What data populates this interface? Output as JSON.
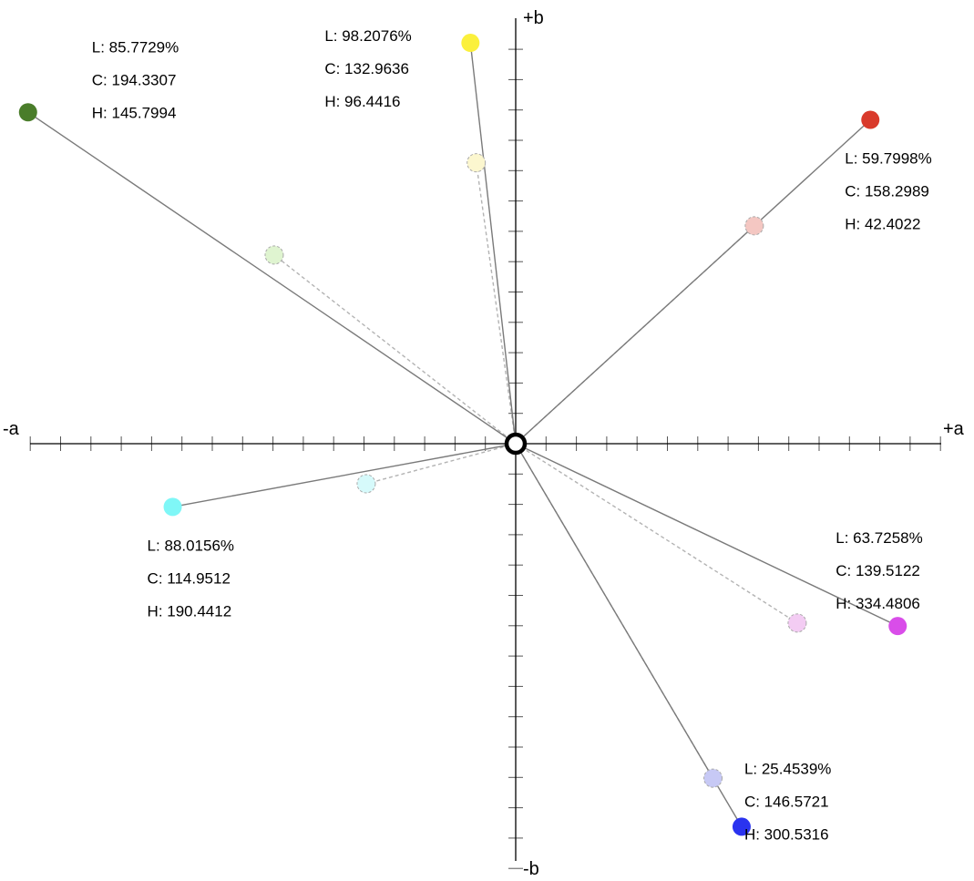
{
  "axes": {
    "pos_a": "+a",
    "neg_a": "-a",
    "pos_b": "+b",
    "neg_b": "-b"
  },
  "chart_data": {
    "type": "scatter",
    "coordinate_space": "CIELCh (a/b plane)",
    "xlim": [
      -160,
      140
    ],
    "ylim": [
      -140,
      133
    ],
    "tick_step": 10,
    "grid": false,
    "origin_marker": true,
    "points": [
      {
        "color": "#d93a2b",
        "faded_color": "#f4c7c2",
        "L": "L: 59.7998%",
        "C": "C: 158.2989",
        "H": "H: 42.4022",
        "chroma": 158.2989,
        "hue": 42.4022,
        "faded_chroma": 106.5,
        "faded_hue": 42.4022,
        "label_side": "below"
      },
      {
        "color": "#fbf03c",
        "faded_color": "#fcf7cf",
        "L": "L: 98.2076%",
        "C": "C: 132.9636",
        "H": "H: 96.4416",
        "chroma": 132.9636,
        "hue": 96.4416,
        "faded_chroma": 93.5,
        "faded_hue": 98.0,
        "label_side": "left"
      },
      {
        "color": "#4a7d2a",
        "faded_color": "#dff4d0",
        "L": "L: 85.7729%",
        "C": "C: 194.3307",
        "H": "H: 145.7994",
        "chroma": 194.3307,
        "hue": 145.7994,
        "faded_chroma": 101.0,
        "faded_hue": 142.0,
        "label_side": "above"
      },
      {
        "color": "#7ff7f7",
        "faded_color": "#d6fafb",
        "L": "L: 88.0156%",
        "C": "C: 114.9512",
        "H": "H: 190.4412",
        "chroma": 114.9512,
        "hue": 190.4412,
        "faded_chroma": 51.0,
        "faded_hue": 195.0,
        "label_side": "below"
      },
      {
        "color": "#2a33ef",
        "faded_color": "#c7c9f5",
        "L": "L: 25.4539%",
        "C": "C: 146.5721",
        "H": "H: 300.5316",
        "chroma": 146.5721,
        "hue": 300.5316,
        "faded_chroma": 128.0,
        "faded_hue": 300.5316,
        "label_side": "above-right"
      },
      {
        "color": "#d94de9",
        "faded_color": "#f3ccf3",
        "L": "L: 63.7258%",
        "C": "C: 139.5122",
        "H": "H: 334.4806",
        "chroma": 139.5122,
        "hue": 334.4806,
        "faded_chroma": 110.0,
        "faded_hue": 327.5,
        "label_side": "above-left"
      }
    ]
  }
}
